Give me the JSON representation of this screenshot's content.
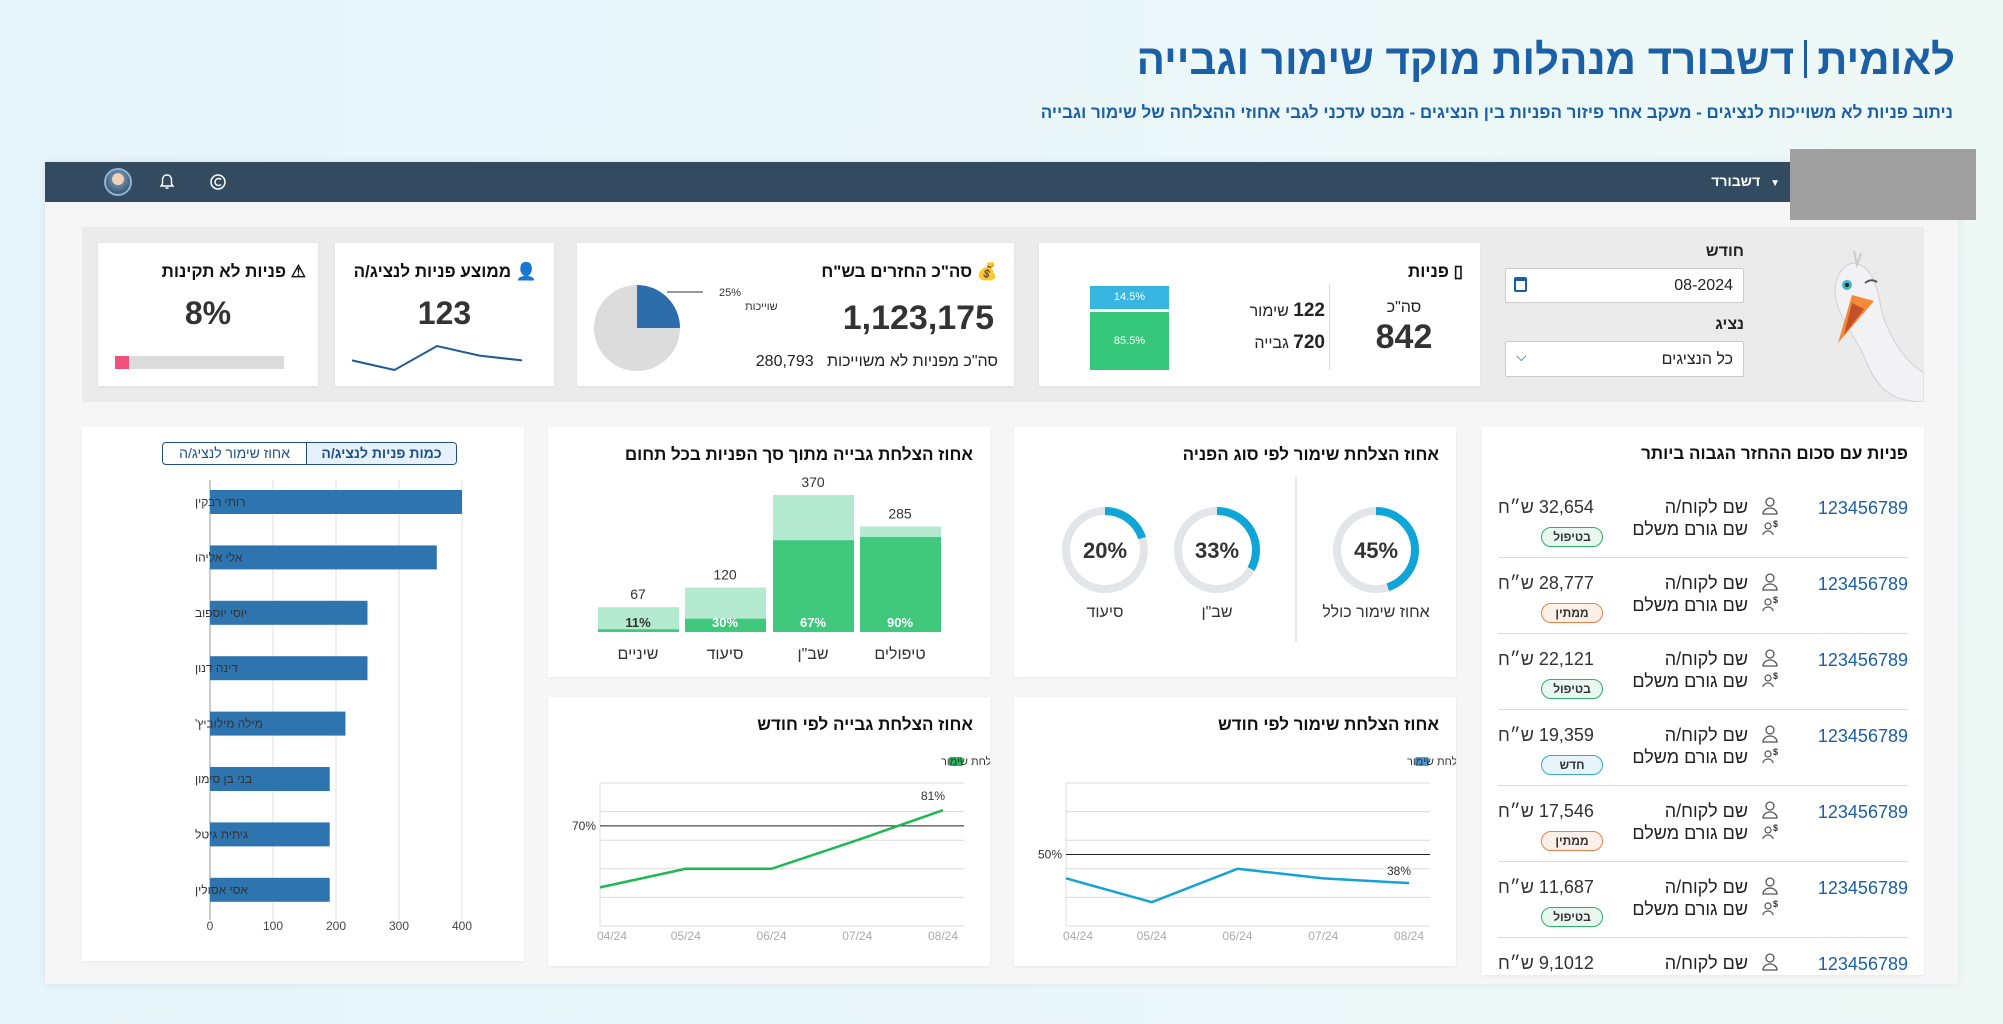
{
  "header": {
    "brand": "לאומית",
    "title": "דשבורד מנהלות מוקד שימור וגבייה",
    "subtitle": "ניתוב פניות לא משוייכות לנציגים - מעקב אחר פיזור הפניות בין הנציגים -  מבט עדכני לגבי אחוזי ההצלחה של שימור וגבייה"
  },
  "nav": {
    "menu_label": "דשבורד",
    "icons": [
      "avatar",
      "bell-icon",
      "copyright-icon"
    ]
  },
  "filters": {
    "month_label": "חודש",
    "month_value": "08-2024",
    "agent_label": "נציג",
    "agent_value": "כל הנציגים"
  },
  "kpi": {
    "invalid": {
      "title": "פניות לא תקינות",
      "value": "8%",
      "percent": 8,
      "color": "#f0507a"
    },
    "avg": {
      "title": "ממוצע פניות לנציג/ה",
      "value": "123",
      "sparkline": [
        3,
        1,
        6,
        4,
        3
      ]
    },
    "returns": {
      "title": "סה\"כ החזרים בש\"ח",
      "value": "1,123,175",
      "sub_label": "סה\"כ מפניות לא משוייכות",
      "sub_value": "280,793",
      "pie_percent": 25,
      "pie_pct_label": "25%",
      "pie_label": "לא משוייכות"
    },
    "inquiries": {
      "title": "פניות",
      "total_label": "סה\"כ",
      "total": "842",
      "retention_value": "122",
      "retention_label": "שימור",
      "collection_value": "720",
      "collection_label": "גבייה",
      "retention_share": "14.5%",
      "collection_share": "85.5%"
    }
  },
  "agents_chart": {
    "tab_active": "כמות פניות לנציג/ה",
    "tab_other": "אחוז שימור לנציג/ה"
  },
  "collection_by_domain": {
    "title": "אחוז הצלחת גבייה מתוך סך הפניות בכל תחום"
  },
  "retention_by_type": {
    "title": "אחוז הצלחת שימור לפי סוג הפניה"
  },
  "collection_monthly": {
    "title": "אחוז הצלחת גבייה לפי חודש"
  },
  "retention_monthly": {
    "title": "אחוז הצלחת שימור לפי חודש"
  },
  "top_list": {
    "title": "פניות עם סכום ההחזר הגבוה ביותר",
    "rows": [
      {
        "id": "123456789",
        "customer": "שם לקוח/ה",
        "payer": "שם גורם משלם",
        "amount": "32,654 ש״ח",
        "status": "בטיפול",
        "status_type": "green"
      },
      {
        "id": "123456789",
        "customer": "שם לקוח/ה",
        "payer": "שם גורם משלם",
        "amount": "28,777 ש״ח",
        "status": "ממתין",
        "status_type": "orange"
      },
      {
        "id": "123456789",
        "customer": "שם לקוח/ה",
        "payer": "שם גורם משלם",
        "amount": "22,121 ש״ח",
        "status": "בטיפול",
        "status_type": "green"
      },
      {
        "id": "123456789",
        "customer": "שם לקוח/ה",
        "payer": "שם גורם משלם",
        "amount": "19,359 ש״ח",
        "status": "חדש",
        "status_type": "blue"
      },
      {
        "id": "123456789",
        "customer": "שם לקוח/ה",
        "payer": "שם גורם משלם",
        "amount": "17,546 ש״ח",
        "status": "ממתין",
        "status_type": "orange"
      },
      {
        "id": "123456789",
        "customer": "שם לקוח/ה",
        "payer": "שם גורם משלם",
        "amount": "11,687 ש״ח",
        "status": "בטיפול",
        "status_type": "green"
      },
      {
        "id": "123456789",
        "customer": "שם לקוח/ה",
        "payer": "שם גורם משלם",
        "amount": "9,1012 ש״ח",
        "status": "",
        "status_type": ""
      }
    ]
  },
  "chart_data": [
    {
      "type": "bar",
      "orientation": "horizontal",
      "categories": [
        "רותי רבקין",
        "אלי אליהו",
        "יוסי יוספוב",
        "דינה דנון",
        "מילה מילוביץ'",
        "בני בן סימון",
        "גיתית גיטל",
        "אסי אסולין"
      ],
      "values": [
        400,
        360,
        250,
        250,
        215,
        190,
        190,
        190
      ],
      "xlim": [
        0,
        400
      ],
      "xticks": [
        0,
        100,
        200,
        300,
        400
      ],
      "grid": true,
      "color": "#2e75b0"
    },
    {
      "type": "bar",
      "stacked": true,
      "title": "אחוז הצלחת גבייה מתוך סך הפניות בכל תחום",
      "categories": [
        "טיפולים",
        "שב\"ן",
        "סיעוד",
        "שיניים"
      ],
      "totals": [
        285,
        370,
        120,
        67
      ],
      "success_percent": [
        90,
        67,
        30,
        11
      ],
      "colors": {
        "total": "#b3ead0",
        "success": "#40c97c"
      }
    },
    {
      "type": "pie",
      "subtype": "donut",
      "title": "אחוז הצלחת שימור לפי סוג הפניה",
      "categories": [
        "אחוז שימור כולל",
        "שב\"ן",
        "סיעוד"
      ],
      "values": [
        45,
        33,
        20
      ],
      "labels": [
        "45%",
        "33%",
        "20%"
      ],
      "color": "#0ea5d8"
    },
    {
      "type": "line",
      "title": "אחוז הצלחת גבייה לפי חודש",
      "x": [
        "04/24",
        "05/24",
        "06/24",
        "07/24",
        "08/24"
      ],
      "series": [
        {
          "name": "אחוז הצלחת שימור",
          "values": [
            27,
            40,
            40,
            60,
            81
          ]
        }
      ],
      "ylim": [
        0,
        100
      ],
      "reference_line": {
        "value": 70,
        "label": "70%"
      },
      "end_label": "81%",
      "grid": true,
      "legend": "top-right",
      "color": "#1db954"
    },
    {
      "type": "line",
      "title": "אחוז הצלחת שימור לפי חודש",
      "x": [
        "04/24",
        "05/24",
        "06/24",
        "07/24",
        "08/24"
      ],
      "series": [
        {
          "name": "אחוז הצלחת שימור",
          "values": [
            40,
            30,
            44,
            40,
            38
          ]
        }
      ],
      "ylim": [
        20,
        80
      ],
      "reference_line": {
        "value": 50,
        "label": "50%"
      },
      "end_label": "38%",
      "grid": true,
      "legend": "top-right",
      "color": "#14a3d6",
      "legend_color": "#4a9ad8"
    }
  ]
}
